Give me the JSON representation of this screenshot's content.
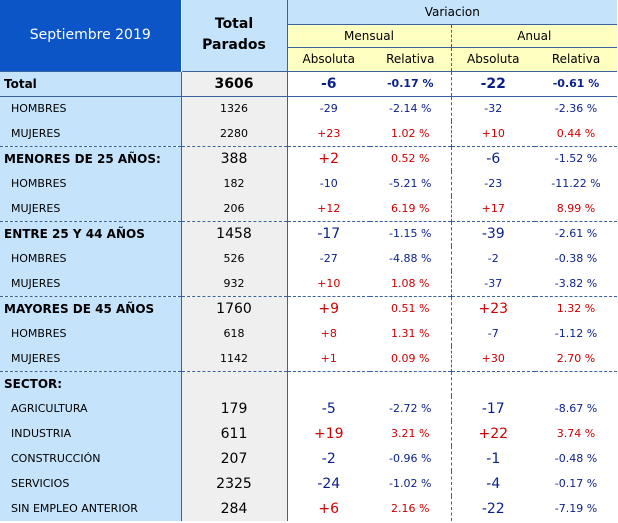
{
  "header": {
    "period": "Septiembre 2019",
    "total_col": "Total Parados",
    "variacion": "Variacion",
    "mensual": "Mensual",
    "anual": "Anual",
    "absoluta": "Absoluta",
    "relativa": "Relativa"
  },
  "rows": [
    {
      "label": "Total",
      "total": "3606",
      "m_abs": "-6",
      "m_rel": "-0.17 %",
      "a_abs": "-22",
      "a_rel": "-0.61 %"
    },
    {
      "label": "HOMBRES",
      "total": "1326",
      "m_abs": "-29",
      "m_rel": "-2.14 %",
      "a_abs": "-32",
      "a_rel": "-2.36 %"
    },
    {
      "label": "MUJERES",
      "total": "2280",
      "m_abs": "+23",
      "m_rel": "1.02 %",
      "a_abs": "+10",
      "a_rel": "0.44 %"
    },
    {
      "label": "MENORES DE 25 AÑOS:",
      "total": "388",
      "m_abs": "+2",
      "m_rel": "0.52 %",
      "a_abs": "-6",
      "a_rel": "-1.52 %"
    },
    {
      "label": "HOMBRES",
      "total": "182",
      "m_abs": "-10",
      "m_rel": "-5.21 %",
      "a_abs": "-23",
      "a_rel": "-11.22 %"
    },
    {
      "label": "MUJERES",
      "total": "206",
      "m_abs": "+12",
      "m_rel": "6.19 %",
      "a_abs": "+17",
      "a_rel": "8.99 %"
    },
    {
      "label": "ENTRE 25 Y 44 AÑOS",
      "total": "1458",
      "m_abs": "-17",
      "m_rel": "-1.15 %",
      "a_abs": "-39",
      "a_rel": "-2.61 %"
    },
    {
      "label": "HOMBRES",
      "total": "526",
      "m_abs": "-27",
      "m_rel": "-4.88 %",
      "a_abs": "-2",
      "a_rel": "-0.38 %"
    },
    {
      "label": "MUJERES",
      "total": "932",
      "m_abs": "+10",
      "m_rel": "1.08 %",
      "a_abs": "-37",
      "a_rel": "-3.82 %"
    },
    {
      "label": "MAYORES DE 45 AÑOS",
      "total": "1760",
      "m_abs": "+9",
      "m_rel": "0.51 %",
      "a_abs": "+23",
      "a_rel": "1.32 %"
    },
    {
      "label": "HOMBRES",
      "total": "618",
      "m_abs": "+8",
      "m_rel": "1.31 %",
      "a_abs": "-7",
      "a_rel": "-1.12 %"
    },
    {
      "label": "MUJERES",
      "total": "1142",
      "m_abs": "+1",
      "m_rel": "0.09 %",
      "a_abs": "+30",
      "a_rel": "2.70 %"
    },
    {
      "label": "SECTOR:",
      "total": "",
      "m_abs": "",
      "m_rel": "",
      "a_abs": "",
      "a_rel": ""
    },
    {
      "label": "AGRICULTURA",
      "total": "179",
      "m_abs": "-5",
      "m_rel": "-2.72 %",
      "a_abs": "-17",
      "a_rel": "-8.67 %"
    },
    {
      "label": "INDUSTRIA",
      "total": "611",
      "m_abs": "+19",
      "m_rel": "3.21 %",
      "a_abs": "+22",
      "a_rel": "3.74 %"
    },
    {
      "label": "CONSTRUCCIÓN",
      "total": "207",
      "m_abs": "-2",
      "m_rel": "-0.96 %",
      "a_abs": "-1",
      "a_rel": "-0.48 %"
    },
    {
      "label": "SERVICIOS",
      "total": "2325",
      "m_abs": "-24",
      "m_rel": "-1.02 %",
      "a_abs": "-4",
      "a_rel": "-0.17 %"
    },
    {
      "label": "SIN EMPLEO ANTERIOR",
      "total": "284",
      "m_abs": "+6",
      "m_rel": "2.16 %",
      "a_abs": "-22",
      "a_rel": "-7.19 %"
    }
  ]
}
